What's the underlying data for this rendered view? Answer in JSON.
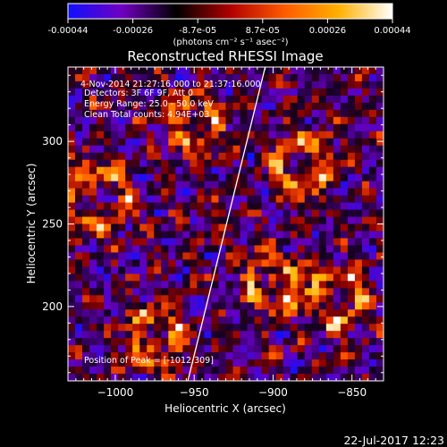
{
  "colorbar": {
    "ticks": [
      "-0.00044",
      "-0.00026",
      "-8.7e-05",
      "8.7e-05",
      "0.00026",
      "0.00044"
    ],
    "units": "(photons cm⁻² s⁻¹ asec⁻²)",
    "colors": [
      "#1010ff",
      "#7000c0",
      "#000000",
      "#b00000",
      "#ff5a00",
      "#ffb000",
      "#ffffff"
    ]
  },
  "chart_data": {
    "type": "heatmap",
    "title": "Reconstructed RHESSI Image",
    "xlabel": "Heliocentric X (arcsec)",
    "ylabel": "Heliocentric Y (arcsec)",
    "xlim": [
      -1030,
      -830
    ],
    "ylim": [
      155,
      345
    ],
    "xticks": [
      -1000,
      -950,
      -900,
      -850
    ],
    "xtick_labels": [
      "−1000",
      "−950",
      "−900",
      "−850"
    ],
    "yticks": [
      200,
      250,
      300
    ],
    "ytick_labels": [
      "200",
      "250",
      "300"
    ],
    "annotations": [
      "4-Nov-2014 21:27:16.000 to 21:37:16.000",
      "Detectors: 3F 6F 9F, Att 0",
      "Energy Range: 25.0 - 50.0 keV",
      "Clean    Total counts: 4.94E+03"
    ],
    "peak_label": "Position of Peak = [-1012,309]",
    "limb_line": {
      "x": [
        -954,
        -905
      ],
      "y": [
        155,
        345
      ]
    },
    "hotspots": [
      {
        "x": -950,
        "y": 310,
        "r": 14
      },
      {
        "x": -1010,
        "y": 265,
        "r": 18
      },
      {
        "x": -880,
        "y": 285,
        "r": 16
      },
      {
        "x": -860,
        "y": 205,
        "r": 16
      },
      {
        "x": -975,
        "y": 180,
        "r": 14
      },
      {
        "x": -900,
        "y": 215,
        "r": 14
      }
    ]
  },
  "footer": {
    "date": "22-Jul-2017 12:23"
  }
}
